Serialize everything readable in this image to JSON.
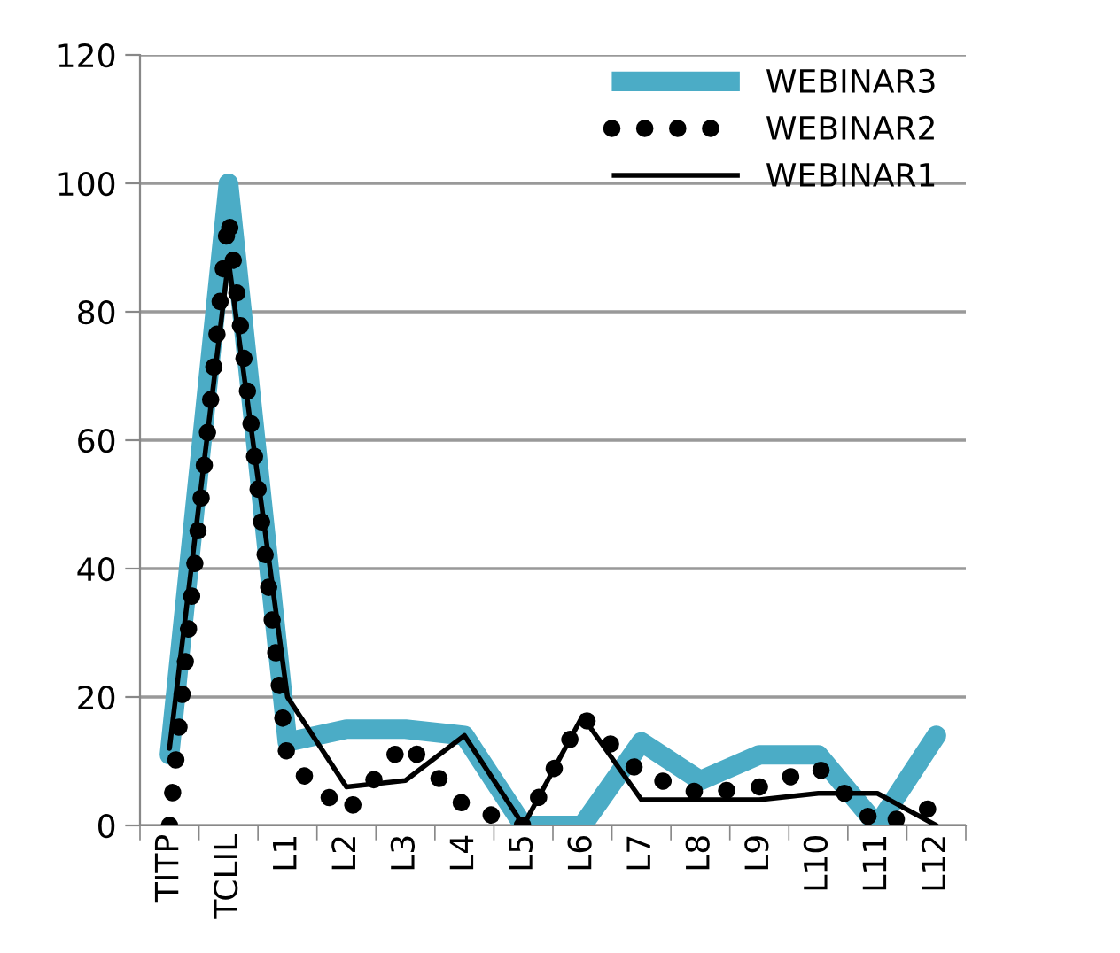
{
  "chart_data": {
    "type": "line",
    "categories": [
      "TITP",
      "TCLIL",
      "L1",
      "L2",
      "L3",
      "L4",
      "L5",
      "L6",
      "L7",
      "L8",
      "L9",
      "L10",
      "L11",
      "L12"
    ],
    "series": [
      {
        "name": "WEBINAR3",
        "color": "#4bacc6",
        "line_style": "solid",
        "values": [
          11,
          100,
          13,
          15,
          15,
          14,
          0,
          0,
          13,
          7,
          11,
          11,
          0,
          14
        ]
      },
      {
        "name": "WEBINAR2",
        "color": "#000000",
        "line_style": "dotted",
        "values": [
          0,
          95,
          10,
          2,
          13,
          3,
          0,
          17,
          8,
          5,
          6,
          9,
          0,
          3
        ]
      },
      {
        "name": "WEBINAR1",
        "color": "#000000",
        "line_style": "solid",
        "values": [
          12,
          88,
          20,
          6,
          7,
          14,
          0,
          17,
          4,
          4,
          4,
          5,
          5,
          0
        ]
      }
    ],
    "ylim": [
      0,
      120
    ],
    "yticks": [
      0,
      20,
      40,
      60,
      80,
      100,
      120
    ],
    "grid": "y",
    "legend": "top right",
    "marker": "none"
  }
}
